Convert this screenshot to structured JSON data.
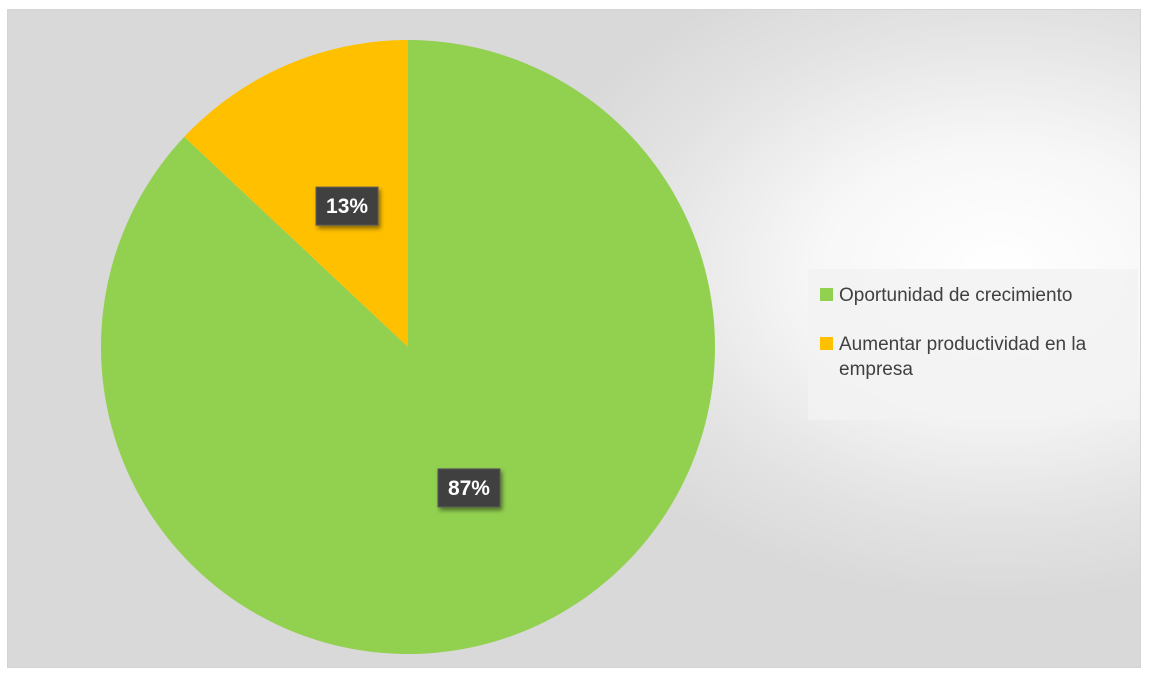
{
  "chart_data": {
    "type": "pie",
    "title": "",
    "categories": [
      "Oportunidad de crecimiento",
      "Aumentar productividad en la empresa"
    ],
    "values": [
      87,
      13
    ],
    "data_labels": [
      "87%",
      "13%"
    ],
    "colors": [
      "#92d050",
      "#ffc000"
    ],
    "legend": {
      "position": "right",
      "entries": [
        "Oportunidad de crecimiento",
        "Aumentar productividad en la empresa"
      ]
    }
  }
}
